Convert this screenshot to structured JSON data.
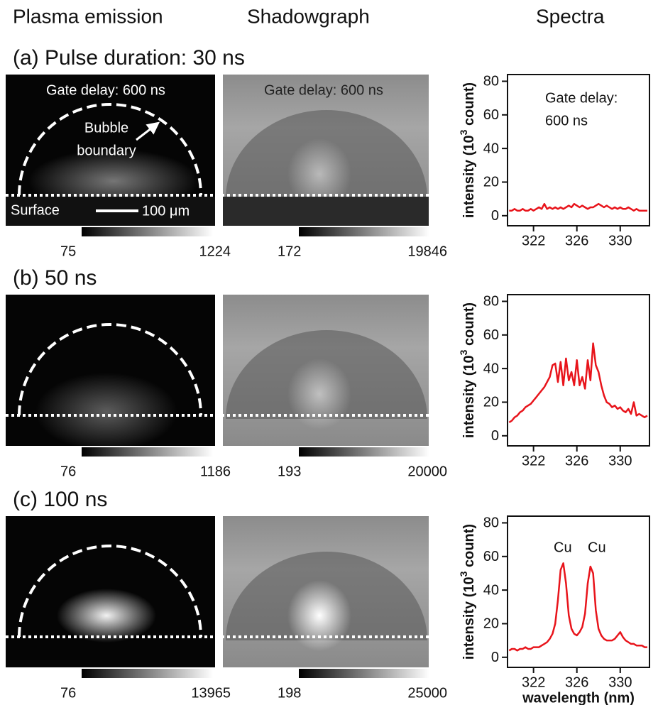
{
  "headers": [
    "Plasma emission",
    "Shadowgraph",
    "Spectra"
  ],
  "panels": [
    {
      "label": "(a) Pulse duration: 30 ns",
      "emission_colorbar": [
        75,
        1224
      ],
      "shadow_colorbar": [
        172,
        19846
      ]
    },
    {
      "label": "(b) 50 ns",
      "emission_colorbar": [
        76,
        1186
      ],
      "shadow_colorbar": [
        193,
        20000
      ]
    },
    {
      "label": "(c) 100 ns",
      "emission_colorbar": [
        76,
        13965
      ],
      "shadow_colorbar": [
        198,
        25000
      ]
    }
  ],
  "image_annotations": {
    "emission_gate_delay": "Gate delay: 600 ns",
    "shadow_gate_delay": "Gate delay: 600 ns",
    "bubble": [
      "Bubble",
      "boundary"
    ],
    "surface": "Surface",
    "scale_bar": "100 μm"
  },
  "chart_data": [
    {
      "type": "line",
      "color": "#e8141b",
      "x": [
        319.75,
        320,
        320.25,
        320.5,
        320.75,
        321,
        321.25,
        321.5,
        321.75,
        322,
        322.25,
        322.5,
        322.75,
        323,
        323.25,
        323.5,
        323.75,
        324,
        324.25,
        324.5,
        324.75,
        325,
        325.25,
        325.5,
        325.75,
        326,
        326.25,
        326.5,
        326.75,
        327,
        327.25,
        327.5,
        327.75,
        328,
        328.25,
        328.5,
        328.75,
        329,
        329.25,
        329.5,
        329.75,
        330,
        330.25,
        330.5,
        330.75,
        331,
        331.25,
        331.5,
        331.75,
        332,
        332.25,
        332.5
      ],
      "values": [
        3,
        3,
        4,
        3,
        3,
        4,
        3,
        3,
        4,
        3,
        4,
        5,
        4,
        7,
        4,
        5,
        4,
        5,
        4,
        5,
        4,
        5,
        6,
        5,
        7,
        6,
        5,
        6,
        5,
        4,
        5,
        5,
        6,
        7,
        6,
        5,
        6,
        5,
        4,
        5,
        4,
        5,
        4,
        4,
        5,
        4,
        3,
        4,
        3,
        3,
        3,
        3
      ],
      "xlim": [
        319.6,
        332.7
      ],
      "ylim": [
        -6,
        84
      ],
      "xticks": [
        322,
        326,
        330
      ],
      "yticks": [
        0,
        20,
        40,
        60,
        80
      ],
      "ylabel": [
        "intensity (10",
        "3",
        " count)"
      ],
      "annotations": [
        "Gate delay:",
        "600 ns"
      ]
    },
    {
      "type": "line",
      "color": "#e8141b",
      "x": [
        319.75,
        320,
        320.25,
        320.5,
        320.75,
        321,
        321.25,
        321.5,
        321.75,
        322,
        322.25,
        322.5,
        322.75,
        323,
        323.25,
        323.5,
        323.75,
        324,
        324.25,
        324.5,
        324.75,
        325,
        325.25,
        325.5,
        325.75,
        326,
        326.25,
        326.5,
        326.75,
        327,
        327.25,
        327.5,
        327.75,
        328,
        328.25,
        328.5,
        328.75,
        329,
        329.25,
        329.5,
        329.75,
        330,
        330.25,
        330.5,
        330.75,
        331,
        331.25,
        331.5,
        331.75,
        332,
        332.25,
        332.5
      ],
      "values": [
        8,
        9,
        11,
        12,
        14,
        15,
        17,
        18,
        19,
        21,
        23,
        25,
        27,
        29,
        32,
        35,
        42,
        43,
        32,
        44,
        30,
        46,
        33,
        38,
        30,
        45,
        30,
        35,
        28,
        45,
        33,
        55,
        42,
        38,
        30,
        24,
        20,
        19,
        17,
        18,
        16,
        17,
        15,
        14,
        16,
        13,
        20,
        12,
        13,
        12,
        11,
        12
      ],
      "xlim": [
        319.6,
        332.7
      ],
      "ylim": [
        -6,
        84
      ],
      "xticks": [
        322,
        326,
        330
      ],
      "yticks": [
        0,
        20,
        40,
        60,
        80
      ],
      "ylabel": [
        "intensity (10",
        "3",
        " count)"
      ]
    },
    {
      "type": "line",
      "color": "#e8141b",
      "x": [
        319.75,
        320,
        320.25,
        320.5,
        320.75,
        321,
        321.25,
        321.5,
        321.75,
        322,
        322.25,
        322.5,
        322.75,
        323,
        323.25,
        323.5,
        323.75,
        324,
        324.25,
        324.5,
        324.75,
        325,
        325.25,
        325.5,
        325.75,
        326,
        326.25,
        326.5,
        326.75,
        327,
        327.25,
        327.5,
        327.75,
        328,
        328.25,
        328.5,
        328.75,
        329,
        329.25,
        329.5,
        329.75,
        330,
        330.25,
        330.5,
        330.75,
        331,
        331.25,
        331.5,
        331.75,
        332,
        332.25,
        332.5
      ],
      "values": [
        4,
        5,
        5,
        4,
        5,
        5,
        6,
        5,
        5,
        6,
        6,
        6,
        7,
        8,
        9,
        11,
        14,
        20,
        34,
        52,
        56,
        44,
        25,
        17,
        14,
        13,
        15,
        18,
        26,
        44,
        54,
        50,
        28,
        17,
        13,
        11,
        10,
        10,
        10,
        11,
        13,
        15,
        12,
        10,
        9,
        8,
        8,
        7,
        7,
        7,
        6,
        6
      ],
      "xlim": [
        319.6,
        332.7
      ],
      "ylim": [
        -6,
        84
      ],
      "xticks": [
        322,
        326,
        330
      ],
      "yticks": [
        0,
        20,
        40,
        60,
        80
      ],
      "ylabel": [
        "intensity (10",
        "3",
        " count)"
      ],
      "annotations": [
        "Cu",
        "Cu"
      ],
      "xlabel": "wavelength (nm)"
    }
  ]
}
